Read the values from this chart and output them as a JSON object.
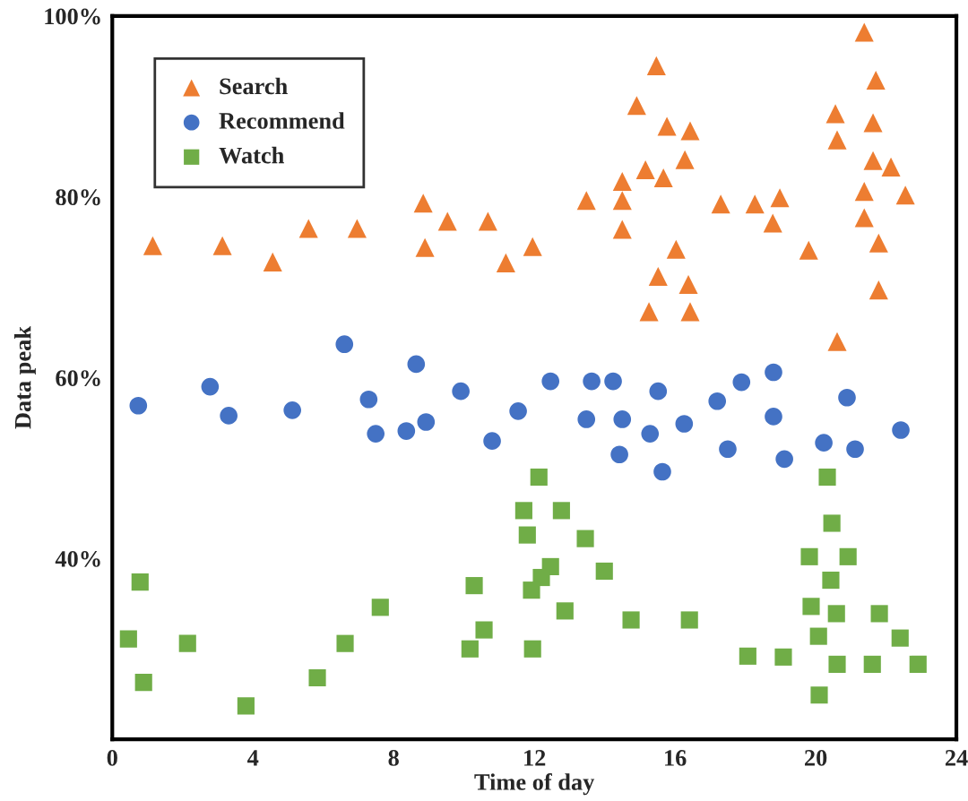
{
  "chart_data": {
    "type": "scatter",
    "xlabel": "Time of day",
    "ylabel": "Data peak",
    "xlim": [
      0,
      24
    ],
    "xticks": [
      0,
      4,
      8,
      12,
      16,
      20,
      24
    ],
    "ylim": [
      20,
      100
    ],
    "yticks": [
      {
        "value": 40,
        "label": "40%"
      },
      {
        "value": 60,
        "label": "60%"
      },
      {
        "value": 80,
        "label": "80%"
      },
      {
        "value": 100,
        "label": "100%"
      }
    ],
    "grid": false,
    "legend": "top left",
    "series": [
      {
        "name": "Search",
        "color": "#ed7d31",
        "marker": "triangle",
        "x": [
          1.15,
          3.13,
          4.56,
          5.58,
          6.96,
          8.84,
          8.89,
          9.53,
          10.68,
          11.19,
          11.95,
          13.48,
          14.5,
          14.5,
          14.5,
          14.91,
          15.16,
          15.47,
          15.67,
          15.77,
          16.28,
          16.43,
          16.03,
          15.52,
          16.38,
          15.26,
          16.43,
          17.3,
          18.27,
          18.98,
          18.78,
          19.8,
          20.56,
          20.61,
          21.38,
          21.71,
          21.63,
          21.63,
          22.14,
          21.38,
          22.55,
          21.38,
          21.79,
          21.79,
          20.61
        ],
        "values": [
          74.6,
          74.6,
          72.8,
          76.5,
          76.5,
          79.3,
          74.4,
          77.3,
          77.3,
          72.7,
          74.5,
          79.6,
          81.7,
          79.6,
          76.4,
          90.1,
          83.0,
          94.5,
          82.1,
          87.8,
          84.1,
          87.3,
          74.2,
          71.2,
          70.3,
          67.3,
          67.3,
          79.2,
          79.2,
          79.9,
          77.1,
          74.1,
          89.2,
          86.3,
          98.2,
          92.9,
          88.2,
          84.0,
          83.3,
          80.6,
          80.2,
          77.7,
          74.9,
          69.7,
          64.0
        ]
      },
      {
        "name": "Recommend",
        "color": "#4472c4",
        "marker": "circle",
        "x": [
          0.74,
          2.78,
          3.31,
          5.12,
          7.29,
          7.49,
          8.36,
          8.92,
          9.91,
          6.6,
          8.64,
          10.8,
          11.54,
          12.46,
          13.63,
          14.24,
          13.48,
          14.5,
          14.42,
          15.29,
          15.52,
          15.64,
          16.26,
          17.2,
          17.89,
          17.5,
          18.8,
          18.8,
          19.11,
          20.23,
          20.89,
          21.12,
          22.42
        ],
        "values": [
          56.9,
          59.0,
          55.8,
          56.4,
          57.6,
          53.8,
          54.1,
          55.1,
          58.5,
          63.7,
          61.5,
          53.0,
          56.3,
          59.6,
          59.6,
          59.6,
          55.4,
          55.4,
          51.5,
          53.8,
          58.5,
          49.6,
          54.9,
          57.4,
          59.5,
          52.1,
          60.6,
          55.7,
          51.0,
          52.8,
          57.8,
          52.1,
          54.2
        ]
      },
      {
        "name": "Watch",
        "color": "#70ad47",
        "marker": "square",
        "x": [
          0.79,
          0.46,
          0.89,
          2.14,
          3.8,
          5.83,
          6.62,
          7.62,
          10.29,
          10.17,
          10.57,
          12.13,
          11.7,
          12.77,
          11.8,
          13.45,
          12.46,
          12.2,
          11.92,
          13.99,
          12.87,
          11.95,
          14.75,
          16.41,
          18.07,
          19.08,
          20.33,
          20.46,
          19.82,
          20.92,
          20.43,
          19.87,
          20.59,
          20.08,
          20.61,
          20.1,
          21.81,
          22.4,
          21.61,
          22.91
        ],
        "values": [
          37.4,
          31.1,
          26.3,
          30.6,
          23.7,
          26.8,
          30.6,
          34.6,
          37.0,
          30.0,
          32.1,
          49.0,
          45.3,
          45.3,
          42.6,
          42.2,
          39.1,
          37.9,
          36.5,
          38.6,
          34.2,
          30.0,
          33.2,
          33.2,
          29.2,
          29.1,
          49.0,
          43.9,
          40.2,
          40.2,
          37.6,
          34.7,
          33.9,
          31.4,
          28.3,
          24.9,
          33.9,
          31.2,
          28.3,
          28.3
        ]
      }
    ]
  }
}
